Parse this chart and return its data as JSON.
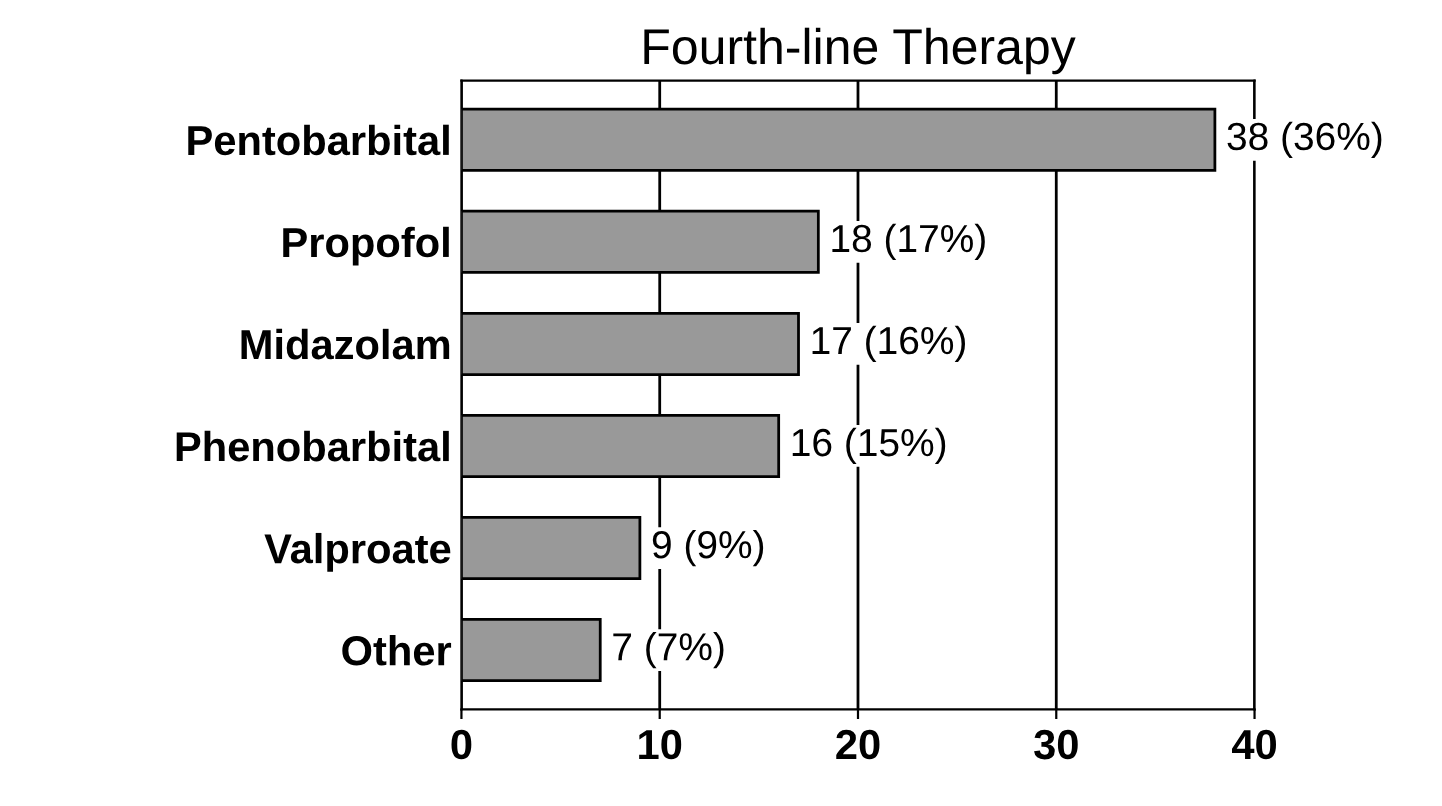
{
  "chart_data": {
    "type": "bar",
    "orientation": "horizontal",
    "title": "Fourth-line Therapy",
    "categories": [
      "Pentobarbital",
      "Propofol",
      "Midazolam",
      "Phenobarbital",
      "Valproate",
      "Other"
    ],
    "values": [
      38,
      18,
      17,
      16,
      9,
      7
    ],
    "value_labels": [
      "38 (36%)",
      "18 (17%)",
      "17 (16%)",
      "16 (15%)",
      "9 (9%)",
      "7 (7%)"
    ],
    "color": "#999999",
    "xlim": [
      0,
      40
    ],
    "xticks": [
      0,
      10,
      20,
      30,
      40
    ],
    "grid": "x"
  }
}
